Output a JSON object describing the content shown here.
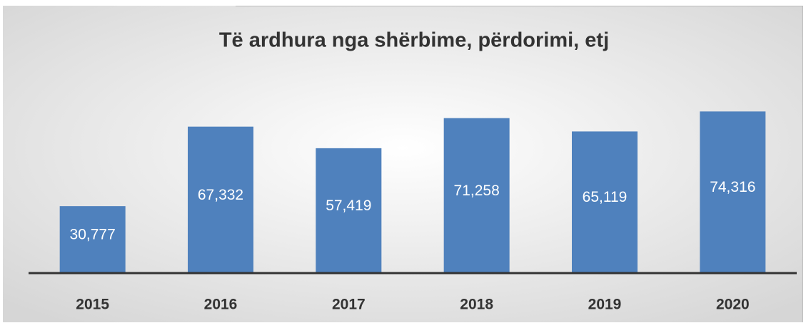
{
  "chart_data": {
    "type": "bar",
    "title": "Të ardhura nga shërbime, përdorimi, etj",
    "categories": [
      "2015",
      "2016",
      "2017",
      "2018",
      "2019",
      "2020"
    ],
    "values": [
      30777,
      67332,
      57419,
      71258,
      65119,
      74316
    ],
    "value_labels": [
      "30,777",
      "67,332",
      "57,419",
      "71,258",
      "65,119",
      "74,316"
    ],
    "color": "#4f81bd",
    "ylim": [
      0,
      80000
    ]
  }
}
